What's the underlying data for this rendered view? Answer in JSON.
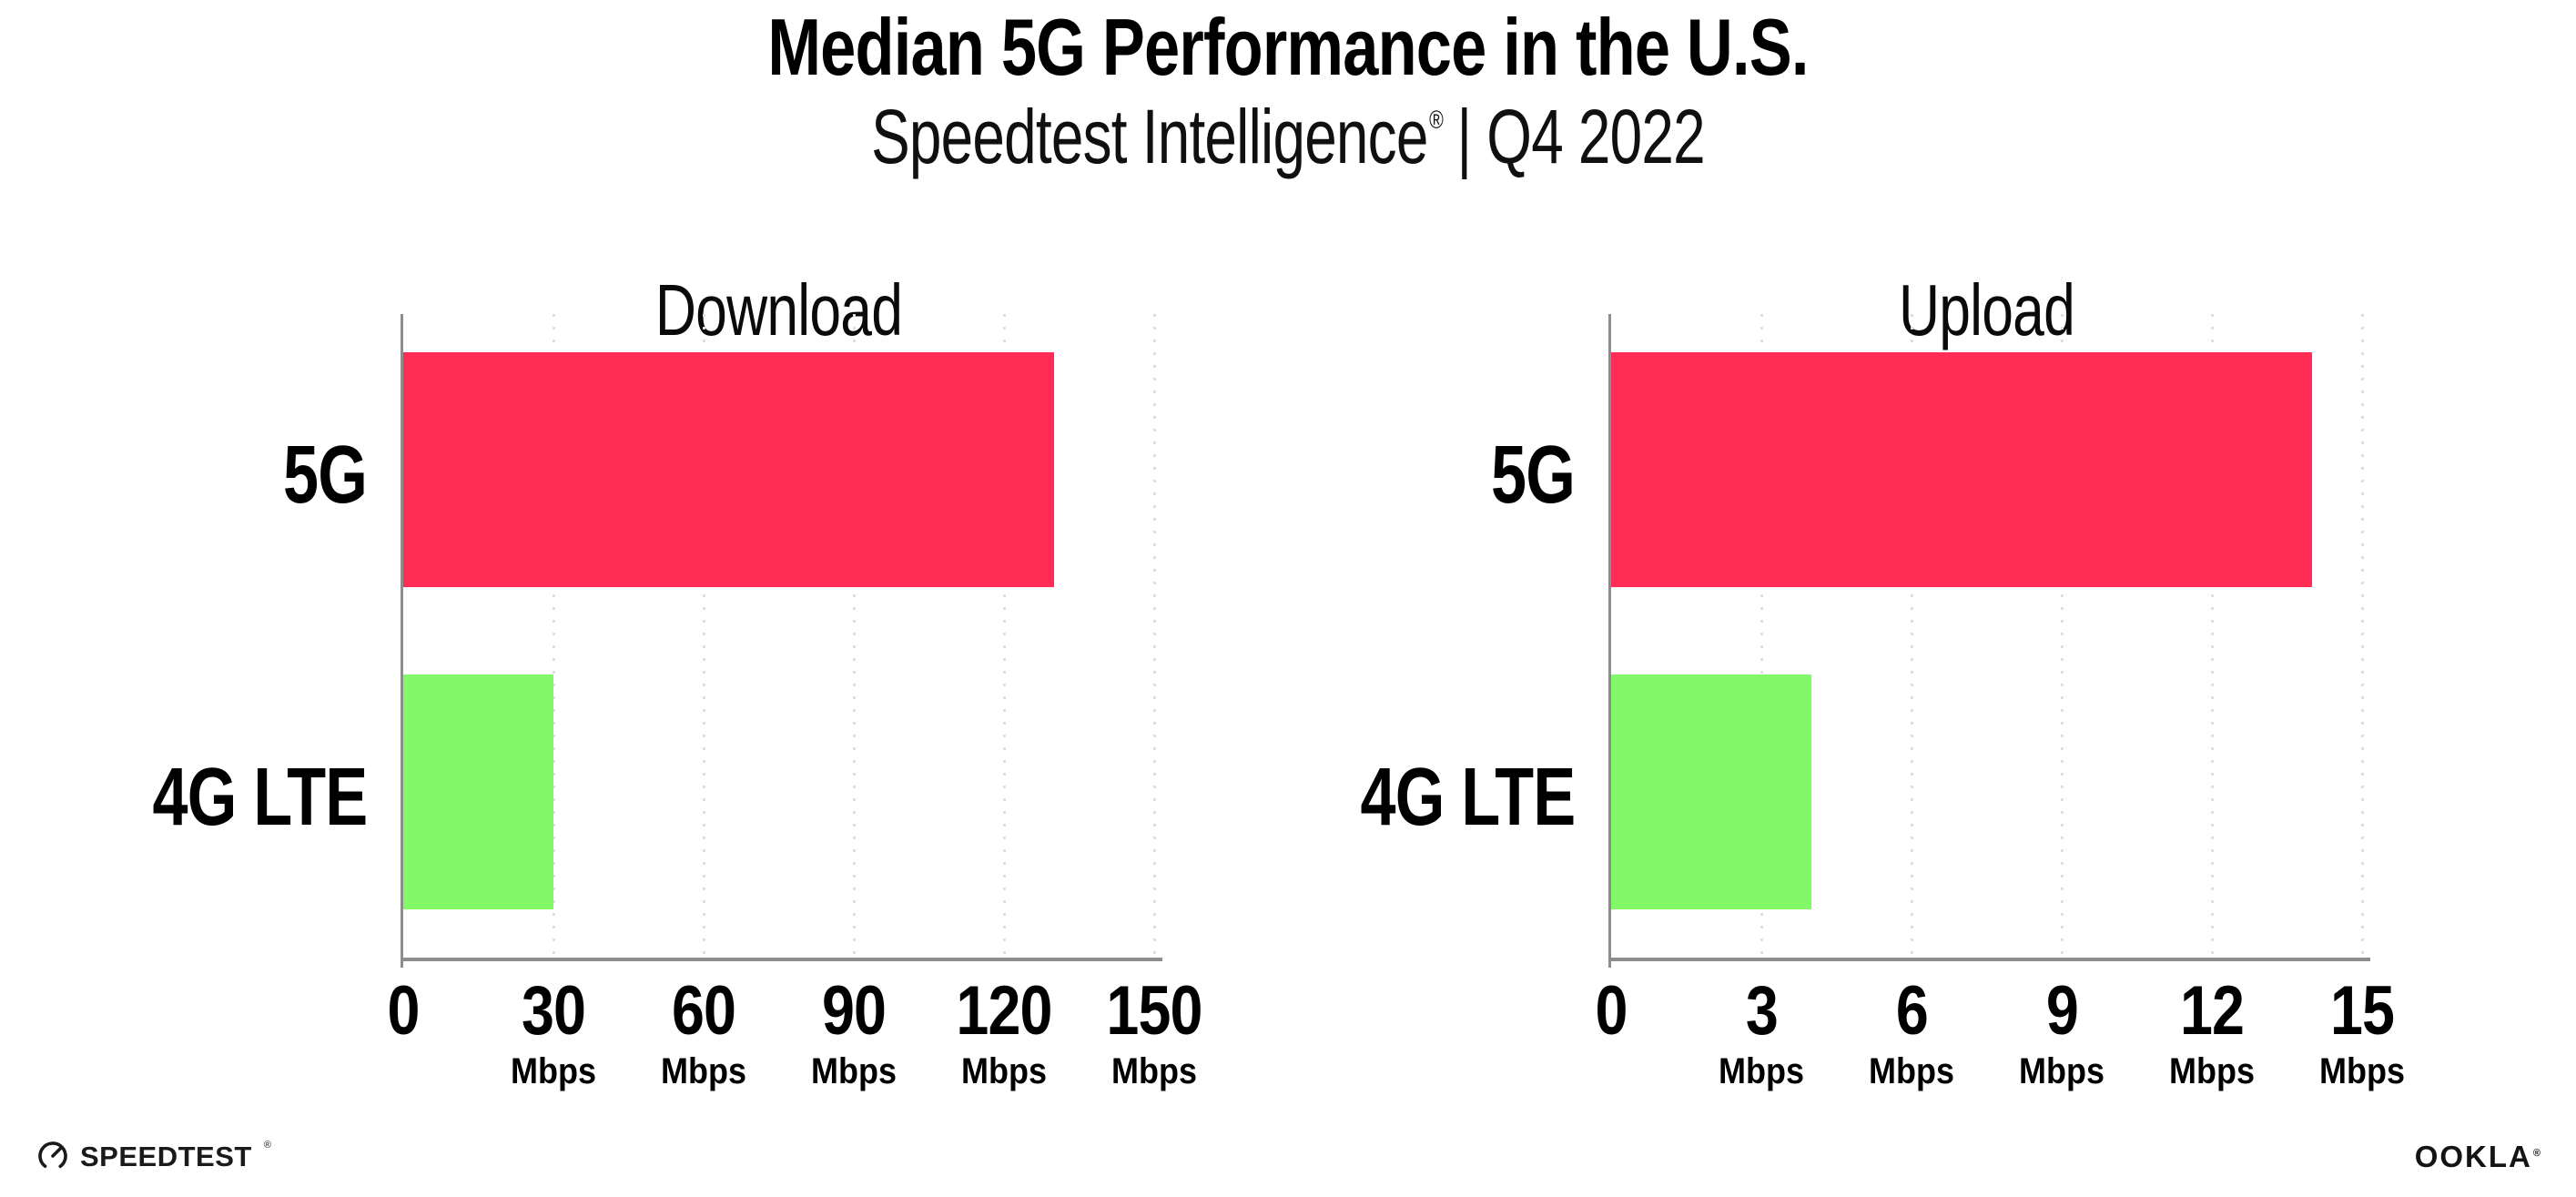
{
  "header": {
    "title": "Median 5G Performance in the U.S.",
    "subtitle_brand": "Speedtest Intelligence",
    "subtitle_reg": "®",
    "subtitle_rest": " | Q4 2022"
  },
  "footer": {
    "speedtest_label": "SPEEDTEST",
    "speedtest_reg": "®",
    "speedtest_icon": "speedtest-gauge-icon",
    "ookla_label": "OOKLA",
    "ookla_reg": "®"
  },
  "colors": {
    "bar_5g": "#FF2D55",
    "bar_4g_lte": "#82F966",
    "axis": "#8d8d8d",
    "gridline": "#dedee8",
    "text": "#000000",
    "background": "#ffffff"
  },
  "chart_data": [
    {
      "type": "bar",
      "orientation": "horizontal",
      "title": "Download",
      "categories": [
        "5G",
        "4G LTE"
      ],
      "values": [
        130,
        30
      ],
      "bar_colors": [
        "#FF2D55",
        "#82F966"
      ],
      "unit": "Mbps",
      "xlabel": "",
      "ylabel": "",
      "xlim": [
        0,
        150
      ],
      "xticks": [
        0,
        30,
        60,
        90,
        120,
        150
      ],
      "tick_unit_label": "Mbps",
      "grid": "dotted-vertical",
      "legend": "none"
    },
    {
      "type": "bar",
      "orientation": "horizontal",
      "title": "Upload",
      "categories": [
        "5G",
        "4G LTE"
      ],
      "values": [
        14,
        4
      ],
      "bar_colors": [
        "#FF2D55",
        "#82F966"
      ],
      "unit": "Mbps",
      "xlabel": "",
      "ylabel": "",
      "xlim": [
        0,
        15
      ],
      "xticks": [
        0,
        3,
        6,
        9,
        12,
        15
      ],
      "tick_unit_label": "Mbps",
      "grid": "dotted-vertical",
      "legend": "none"
    }
  ]
}
